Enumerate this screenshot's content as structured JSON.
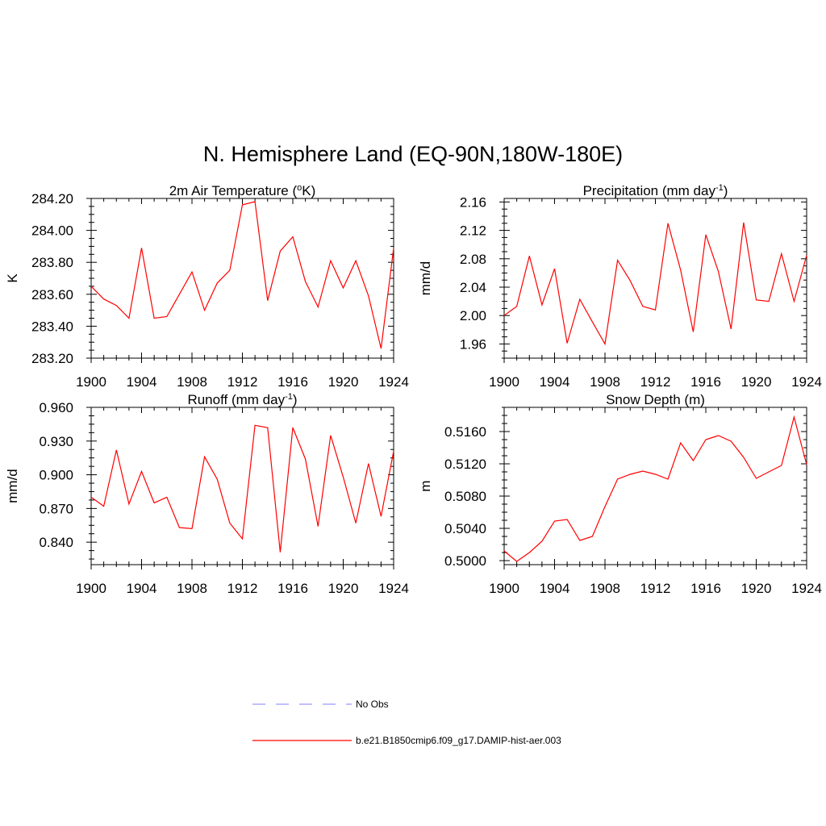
{
  "figure": {
    "title": "N. Hemisphere Land (EQ-90N,180W-180E)"
  },
  "chart_data": [
    {
      "type": "line",
      "title": "2m Air Temperature (",
      "title_sup": "o",
      "title_post": "K)",
      "ylabel": "K",
      "xlim": [
        1900,
        1924
      ],
      "ylim": [
        283.2,
        284.2
      ],
      "xticks": [
        "1900",
        "1904",
        "1908",
        "1912",
        "1916",
        "1920",
        "1924"
      ],
      "yticks": [
        "283.20",
        "283.40",
        "283.60",
        "283.80",
        "284.00",
        "284.20"
      ],
      "x": [
        1900,
        1901,
        1902,
        1903,
        1904,
        1905,
        1906,
        1907,
        1908,
        1909,
        1910,
        1911,
        1912,
        1913,
        1914,
        1915,
        1916,
        1917,
        1918,
        1919,
        1920,
        1921,
        1922,
        1923,
        1924
      ],
      "series": [
        {
          "name": "b.e21.B1850cmip6.f09_g17.DAMIP-hist-aer.003",
          "values": [
            283.65,
            283.57,
            283.53,
            283.45,
            283.89,
            283.45,
            283.46,
            283.6,
            283.74,
            283.5,
            283.67,
            283.75,
            284.16,
            284.18,
            283.56,
            283.87,
            283.96,
            283.68,
            283.52,
            283.81,
            283.64,
            283.81,
            283.59,
            283.26,
            283.89
          ]
        }
      ]
    },
    {
      "type": "line",
      "title": "Precipitation (mm day",
      "title_sup": "-1",
      "title_post": ")",
      "ylabel": "mm/d",
      "xlim": [
        1900,
        1924
      ],
      "ylim": [
        1.94,
        2.165
      ],
      "xticks": [
        "1900",
        "1904",
        "1908",
        "1912",
        "1916",
        "1920",
        "1924"
      ],
      "yticks": [
        "1.96",
        "2.00",
        "2.04",
        "2.08",
        "2.12",
        "2.16"
      ],
      "x": [
        1900,
        1901,
        1902,
        1903,
        1904,
        1905,
        1906,
        1907,
        1908,
        1909,
        1910,
        1911,
        1912,
        1913,
        1914,
        1915,
        1916,
        1917,
        1918,
        1919,
        1920,
        1921,
        1922,
        1923,
        1924
      ],
      "series": [
        {
          "name": "b.e21.B1850cmip6.f09_g17.DAMIP-hist-aer.003",
          "values": [
            2.0,
            2.013,
            2.084,
            2.015,
            2.066,
            1.961,
            2.023,
            1.991,
            1.96,
            2.078,
            2.049,
            2.013,
            2.008,
            2.13,
            2.064,
            1.977,
            2.114,
            2.062,
            1.981,
            2.131,
            2.022,
            2.02,
            2.087,
            2.02,
            2.085
          ]
        }
      ]
    },
    {
      "type": "line",
      "title": "Runoff (mm day",
      "title_sup": "-1",
      "title_post": ")",
      "ylabel": "mm/d",
      "xlim": [
        1900,
        1924
      ],
      "ylim": [
        0.82,
        0.96
      ],
      "xticks": [
        "1900",
        "1904",
        "1908",
        "1912",
        "1916",
        "1920",
        "1924"
      ],
      "yticks": [
        "0.840",
        "0.870",
        "0.900",
        "0.930",
        "0.960"
      ],
      "x": [
        1900,
        1901,
        1902,
        1903,
        1904,
        1905,
        1906,
        1907,
        1908,
        1909,
        1910,
        1911,
        1912,
        1913,
        1914,
        1915,
        1916,
        1917,
        1918,
        1919,
        1920,
        1921,
        1922,
        1923,
        1924
      ],
      "series": [
        {
          "name": "b.e21.B1850cmip6.f09_g17.DAMIP-hist-aer.003",
          "values": [
            0.88,
            0.872,
            0.922,
            0.874,
            0.903,
            0.875,
            0.88,
            0.853,
            0.852,
            0.916,
            0.896,
            0.857,
            0.843,
            0.944,
            0.942,
            0.831,
            0.942,
            0.914,
            0.854,
            0.935,
            0.898,
            0.857,
            0.91,
            0.863,
            0.921
          ]
        }
      ]
    },
    {
      "type": "line",
      "title": "Snow Depth (m)",
      "title_sup": "",
      "title_post": "",
      "ylabel": "m",
      "xlim": [
        1900,
        1924
      ],
      "ylim": [
        0.4995,
        0.519
      ],
      "xticks": [
        "1900",
        "1904",
        "1908",
        "1912",
        "1916",
        "1920",
        "1924"
      ],
      "yticks": [
        "0.5000",
        "0.5040",
        "0.5080",
        "0.5120",
        "0.5160"
      ],
      "x": [
        1900,
        1901,
        1902,
        1903,
        1904,
        1905,
        1906,
        1907,
        1908,
        1909,
        1910,
        1911,
        1912,
        1913,
        1914,
        1915,
        1916,
        1917,
        1918,
        1919,
        1920,
        1921,
        1922,
        1923,
        1924
      ],
      "series": [
        {
          "name": "b.e21.B1850cmip6.f09_g17.DAMIP-hist-aer.003",
          "values": [
            0.5012,
            0.4999,
            0.501,
            0.5024,
            0.5049,
            0.5051,
            0.5025,
            0.503,
            0.5067,
            0.5101,
            0.5107,
            0.5111,
            0.5107,
            0.5101,
            0.5146,
            0.5124,
            0.515,
            0.5155,
            0.5148,
            0.5128,
            0.5102,
            0.511,
            0.5118,
            0.5178,
            0.5119
          ]
        }
      ]
    }
  ],
  "legend": [
    {
      "label": "No Obs",
      "color": "#9999ff",
      "style": "dashed"
    },
    {
      "label": "b.e21.B1850cmip6.f09_g17.DAMIP-hist-aer.003",
      "color": "#ff0000",
      "style": "solid"
    }
  ],
  "colors": {
    "series": "#ff0000",
    "obs": "#9999ff",
    "axis": "#000000"
  }
}
